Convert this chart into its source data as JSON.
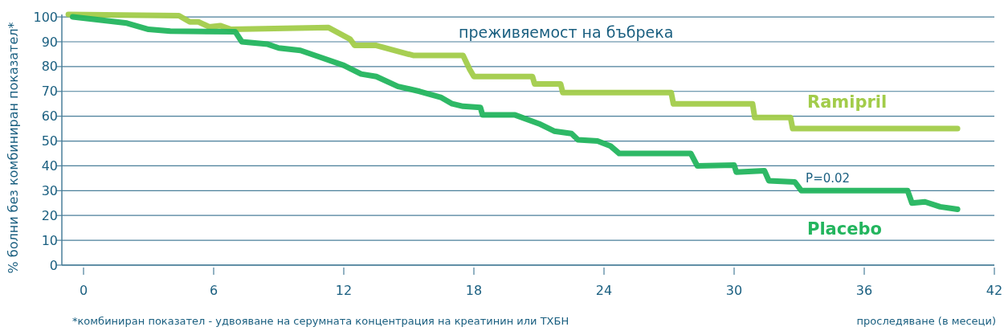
{
  "chart_data": {
    "type": "line",
    "title": "преживяемост на бъбрека",
    "xlabel": "проследяване (в месеци)",
    "ylabel": "% болни без комбиниран показател*",
    "annotations": [
      "P=0.02",
      "*комбиниран показател - удвояване на серумната концентрация на креатинин или ТХБН"
    ],
    "xlim": [
      -1,
      42
    ],
    "xticks": [
      0,
      6,
      12,
      18,
      24,
      30,
      36,
      42
    ],
    "ylim": [
      0,
      101
    ],
    "yticks": [
      0,
      10,
      20,
      30,
      40,
      50,
      60,
      70,
      80,
      90,
      100
    ],
    "grid": "y",
    "marker": "none",
    "line_style": "solid",
    "series": [
      {
        "name": "Ramipril",
        "color": "#a2cc4a",
        "x": [
          -0.7,
          4.4,
          4.9,
          5.3,
          5.8,
          6.3,
          6.8,
          11.3,
          12.3,
          12.5,
          13.5,
          15.2,
          17.5,
          17.8,
          18,
          20.7,
          20.8,
          22,
          22.1,
          27.1,
          27.2,
          30.85,
          30.95,
          32.6,
          32.7,
          40.3
        ],
        "values": [
          101,
          100.5,
          98,
          98,
          96,
          96.5,
          95,
          95.7,
          91,
          88.5,
          88.5,
          84.5,
          84.5,
          79,
          76,
          76,
          73,
          73,
          69.5,
          69.5,
          65,
          65,
          59.5,
          59.5,
          55,
          55
        ]
      },
      {
        "name": "Placebo",
        "color": "#23b55e",
        "x": [
          -0.5,
          2,
          3,
          4,
          7,
          7.3,
          8.5,
          9,
          10,
          11,
          12,
          12.8,
          13.5,
          14.5,
          15.5,
          16.5,
          17,
          17.5,
          18.3,
          18.4,
          19.9,
          21,
          21.7,
          22.5,
          22.8,
          23.7,
          24.3,
          24.7,
          28,
          28.3,
          30,
          30.1,
          31.4,
          31.6,
          32.8,
          33.1,
          38,
          38.2,
          38.8,
          39.5,
          40.3
        ],
        "values": [
          100,
          97.5,
          95,
          94.3,
          94,
          90,
          89,
          87.5,
          86.5,
          83.5,
          80.5,
          77,
          76,
          72,
          70,
          67.5,
          65,
          64,
          63.5,
          60.5,
          60.5,
          57,
          54,
          53,
          50.5,
          50,
          48,
          45,
          45,
          40,
          40.3,
          37.5,
          38,
          34,
          33.5,
          30,
          30,
          25,
          25.5,
          23.5,
          22.5
        ]
      }
    ]
  }
}
